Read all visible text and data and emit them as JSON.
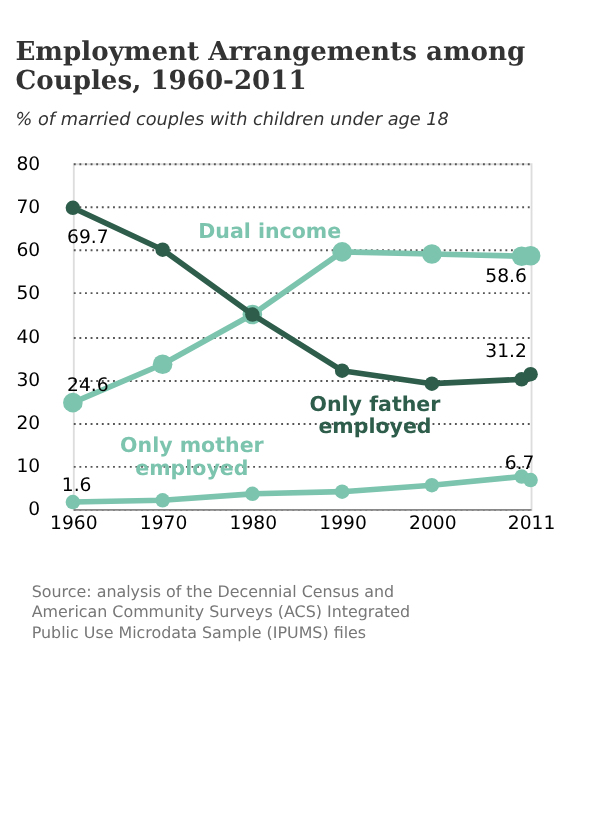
{
  "chart_data": {
    "type": "line",
    "title": "Employment Arrangements among Couples, 1960-2011",
    "subtitle": "% of married couples with children under age 18",
    "x": [
      1960,
      1970,
      1980,
      1990,
      2000,
      2010,
      2011
    ],
    "series": [
      {
        "name": "Dual income",
        "color": "#7cc4ae",
        "values": [
          24.6,
          33.5,
          45,
          59.5,
          59,
          58.5,
          58.6
        ],
        "value_labels": [
          "24.6",
          null,
          null,
          null,
          null,
          null,
          "58.6"
        ]
      },
      {
        "name": "Only father employed",
        "color": "#2e5e4b",
        "values": [
          69.7,
          60,
          45,
          32,
          29,
          30,
          31.2
        ],
        "value_labels": [
          "69.7",
          null,
          null,
          null,
          null,
          null,
          "31.2"
        ]
      },
      {
        "name": "Only mother employed",
        "color": "#7cc4ae",
        "values": [
          1.6,
          2,
          3.5,
          4,
          5.5,
          7.5,
          6.7
        ],
        "value_labels": [
          "1.6",
          null,
          null,
          null,
          null,
          null,
          "6.7"
        ]
      }
    ],
    "xlim": [
      1960,
      2011
    ],
    "xticks": [
      1960,
      1970,
      1980,
      1990,
      2000,
      2011
    ],
    "ylim": [
      0,
      80
    ],
    "yticks": [
      0,
      10,
      20,
      30,
      40,
      50,
      60,
      70,
      80
    ],
    "grid": "y",
    "legend": false,
    "marker": "circle",
    "line_style": "solid",
    "annotations": [
      "Source: analysis of the Decennial Census and American Community Surveys (ACS) Integrated Public Use Microdata Sample (IPUMS) files"
    ]
  }
}
